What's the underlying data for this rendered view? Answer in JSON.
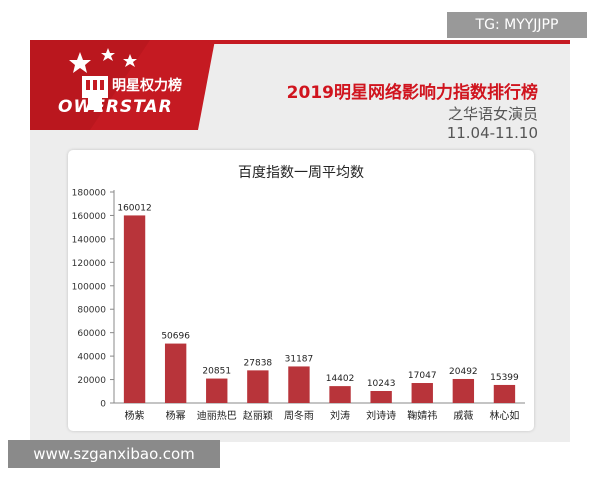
{
  "header": {
    "logo_text": "明星权力榜",
    "logo_sub": "OWERSTAR",
    "title": "2019明星网络影响力指数排行榜",
    "subtitle": "之华语女演员",
    "date_range": "11.04-11.10"
  },
  "watermarks": {
    "top_right": "TG: MYYJJPP",
    "bottom_left": "www.szganxibao.com"
  },
  "colors": {
    "brand_red": "#c51a22",
    "bar": "#b8343a",
    "axis": "#888888"
  },
  "chart_data": {
    "type": "bar",
    "title": "百度指数一周平均数",
    "categories": [
      "杨紫",
      "杨幂",
      "迪丽热巴",
      "赵丽颖",
      "周冬雨",
      "刘涛",
      "刘诗诗",
      "鞠婧祎",
      "戚薇",
      "林心如"
    ],
    "values": [
      160012,
      50696,
      20851,
      27838,
      31187,
      14402,
      10243,
      17047,
      20492,
      15399
    ],
    "ylim": [
      0,
      180000
    ],
    "yticks": [
      0,
      20000,
      40000,
      60000,
      80000,
      100000,
      120000,
      140000,
      160000,
      180000
    ],
    "grid": false,
    "legend": "none"
  }
}
